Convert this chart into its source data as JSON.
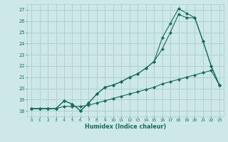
{
  "xlabel": "Humidex (Indice chaleur)",
  "xlim": [
    -0.5,
    23.5
  ],
  "ylim": [
    17.5,
    27.5
  ],
  "yticks": [
    18,
    19,
    20,
    21,
    22,
    23,
    24,
    25,
    26,
    27
  ],
  "xticks": [
    0,
    1,
    2,
    3,
    4,
    5,
    6,
    7,
    8,
    9,
    10,
    11,
    12,
    13,
    14,
    15,
    16,
    17,
    18,
    19,
    20,
    21,
    22,
    23
  ],
  "background_color": "#cce8e8",
  "grid_color": "#aacccc",
  "line_color": "#1a6b5a",
  "line1_x": [
    0,
    1,
    2,
    3,
    4,
    5,
    6,
    7,
    8,
    9,
    10,
    11,
    12,
    13,
    14,
    15,
    16,
    17,
    18,
    19,
    20,
    21,
    22,
    23
  ],
  "line1_y": [
    18.2,
    18.2,
    18.2,
    18.2,
    18.4,
    18.4,
    18.4,
    18.5,
    18.7,
    18.9,
    19.1,
    19.3,
    19.5,
    19.7,
    19.9,
    20.1,
    20.4,
    20.6,
    20.8,
    21.0,
    21.2,
    21.4,
    21.6,
    20.3
  ],
  "line2_x": [
    0,
    1,
    2,
    3,
    4,
    5,
    6,
    7,
    8,
    9,
    10,
    11,
    12,
    13,
    14,
    15,
    16,
    17,
    18,
    19,
    20,
    21,
    22,
    23
  ],
  "line2_y": [
    18.2,
    18.2,
    18.2,
    18.2,
    18.9,
    18.6,
    18.0,
    18.7,
    19.5,
    20.1,
    20.3,
    20.6,
    21.0,
    21.3,
    21.8,
    22.4,
    23.5,
    25.0,
    26.6,
    26.3,
    26.3,
    24.2,
    22.0,
    20.3
  ],
  "line3_x": [
    0,
    1,
    2,
    3,
    4,
    5,
    6,
    7,
    8,
    9,
    10,
    11,
    12,
    13,
    14,
    15,
    16,
    17,
    18,
    19,
    20,
    21,
    22,
    23
  ],
  "line3_y": [
    18.2,
    18.2,
    18.2,
    18.2,
    18.9,
    18.6,
    18.0,
    18.7,
    19.5,
    20.1,
    20.3,
    20.6,
    21.0,
    21.3,
    21.8,
    22.4,
    24.5,
    25.8,
    27.1,
    26.7,
    26.3,
    24.2,
    22.0,
    20.3
  ]
}
